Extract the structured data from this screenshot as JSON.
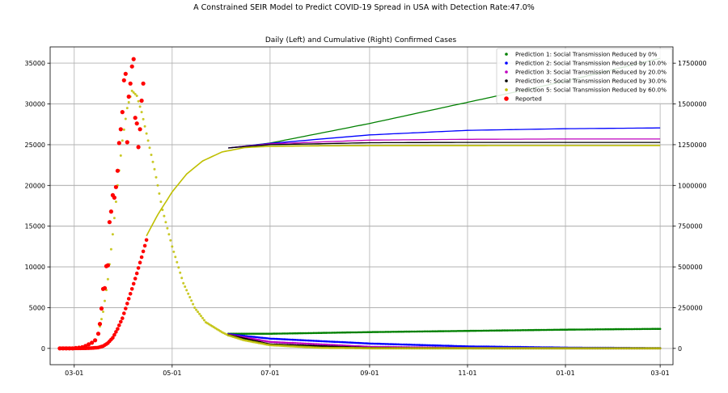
{
  "suptitle": "A Constrained SEIR Model to Predict COVID-19 Spread in USA with Detection Rate:47.0%",
  "chart_data": {
    "type": "scatter",
    "title": "Daily (Left) and Cumulative (Right) Confirmed Cases",
    "xlabel": "",
    "ylabel": "",
    "grid": true,
    "legend_placement": "top-right",
    "x_range": [
      "2020-02-15",
      "2021-03-09"
    ],
    "x_ticks": [
      {
        "date": "2020-03-01",
        "label": "03-01"
      },
      {
        "date": "2020-05-01",
        "label": "05-01"
      },
      {
        "date": "2020-07-01",
        "label": "07-01"
      },
      {
        "date": "2020-09-01",
        "label": "09-01"
      },
      {
        "date": "2020-11-01",
        "label": "11-01"
      },
      {
        "date": "2021-01-01",
        "label": "01-01"
      },
      {
        "date": "2021-03-01",
        "label": "03-01"
      }
    ],
    "y_left": {
      "range": [
        -2000,
        37000
      ],
      "ticks": [
        0,
        5000,
        10000,
        15000,
        20000,
        25000,
        30000,
        35000
      ]
    },
    "y_right": {
      "range": [
        -100000,
        1850000
      ],
      "ticks": [
        0,
        250000,
        500000,
        750000,
        1000000,
        1250000,
        1500000,
        1750000
      ]
    },
    "series": [
      {
        "name": "Prediction 1: Social Transmission Reduced by 0%",
        "color": "#008000",
        "marker": "dot",
        "daily_tail": [
          [
            "2020-06-05",
            1800
          ],
          [
            "2020-07-01",
            1800
          ],
          [
            "2020-09-01",
            2000
          ],
          [
            "2020-11-01",
            2150
          ],
          [
            "2021-01-01",
            2300
          ],
          [
            "2021-03-01",
            2400
          ]
        ],
        "cumulative_tail": [
          [
            "2020-06-05",
            1230000
          ],
          [
            "2020-07-01",
            1260000
          ],
          [
            "2020-09-01",
            1380000
          ],
          [
            "2020-11-01",
            1510000
          ],
          [
            "2021-01-01",
            1640000
          ],
          [
            "2021-03-01",
            1780000
          ]
        ]
      },
      {
        "name": "Prediction 2: Social Transmission Reduced by 10.0%",
        "color": "#0000ff",
        "marker": "dot",
        "daily_tail": [
          [
            "2020-06-05",
            1750
          ],
          [
            "2020-07-01",
            1200
          ],
          [
            "2020-09-01",
            600
          ],
          [
            "2020-11-01",
            250
          ],
          [
            "2021-01-01",
            100
          ],
          [
            "2021-03-01",
            40
          ]
        ],
        "cumulative_tail": [
          [
            "2020-06-05",
            1230000
          ],
          [
            "2020-07-01",
            1258000
          ],
          [
            "2020-09-01",
            1310000
          ],
          [
            "2020-11-01",
            1338000
          ],
          [
            "2021-01-01",
            1348000
          ],
          [
            "2021-03-01",
            1353000
          ]
        ]
      },
      {
        "name": "Prediction 3: Social Transmission Reduced by 20.0%",
        "color": "#bf00bf",
        "marker": "dot",
        "daily_tail": [
          [
            "2020-06-05",
            1700
          ],
          [
            "2020-07-01",
            800
          ],
          [
            "2020-09-01",
            200
          ],
          [
            "2020-11-01",
            50
          ],
          [
            "2021-01-01",
            10
          ],
          [
            "2021-03-01",
            0
          ]
        ],
        "cumulative_tail": [
          [
            "2020-06-05",
            1230000
          ],
          [
            "2020-07-01",
            1255000
          ],
          [
            "2020-09-01",
            1278000
          ],
          [
            "2020-11-01",
            1283000
          ],
          [
            "2021-01-01",
            1285000
          ],
          [
            "2021-03-01",
            1285000
          ]
        ]
      },
      {
        "name": "Prediction 4: Social Transmission Reduced by 30.0%",
        "color": "#000000",
        "marker": "dot",
        "daily_tail": [
          [
            "2020-06-05",
            1650
          ],
          [
            "2020-07-01",
            500
          ],
          [
            "2020-09-01",
            60
          ],
          [
            "2020-11-01",
            10
          ],
          [
            "2021-01-01",
            0
          ],
          [
            "2021-03-01",
            0
          ]
        ],
        "cumulative_tail": [
          [
            "2020-06-05",
            1230000
          ],
          [
            "2020-07-01",
            1250000
          ],
          [
            "2020-09-01",
            1262000
          ],
          [
            "2020-11-01",
            1264000
          ],
          [
            "2021-01-01",
            1264000
          ],
          [
            "2021-03-01",
            1264000
          ]
        ]
      },
      {
        "name": "Prediction 5: Social Transmission Reduced by 60.0%",
        "color": "#bfbf00",
        "marker": "dot",
        "daily_curve": [
          [
            "2020-03-16",
            1800
          ],
          [
            "2020-03-19",
            4500
          ],
          [
            "2020-03-22",
            8500
          ],
          [
            "2020-03-25",
            14000
          ],
          [
            "2020-03-28",
            20000
          ],
          [
            "2020-03-31",
            25500
          ],
          [
            "2020-04-03",
            29500
          ],
          [
            "2020-04-06",
            31600
          ],
          [
            "2020-04-09",
            31000
          ],
          [
            "2020-04-12",
            29000
          ],
          [
            "2020-04-16",
            25500
          ],
          [
            "2020-04-20",
            22000
          ],
          [
            "2020-04-25",
            17000
          ],
          [
            "2020-05-01",
            12500
          ],
          [
            "2020-05-08",
            8000
          ],
          [
            "2020-05-15",
            5000
          ],
          [
            "2020-05-22",
            3200
          ],
          [
            "2020-06-01",
            2000
          ],
          [
            "2020-06-05",
            1600
          ],
          [
            "2020-06-15",
            1000
          ],
          [
            "2020-07-01",
            400
          ],
          [
            "2020-08-01",
            80
          ],
          [
            "2020-09-01",
            20
          ],
          [
            "2020-10-01",
            0
          ],
          [
            "2021-03-01",
            0
          ]
        ],
        "cumulative_curve": [
          [
            "2020-04-15",
            690000
          ],
          [
            "2020-04-22",
            820000
          ],
          [
            "2020-05-01",
            960000
          ],
          [
            "2020-05-10",
            1070000
          ],
          [
            "2020-05-20",
            1150000
          ],
          [
            "2020-06-01",
            1205000
          ],
          [
            "2020-06-15",
            1232000
          ],
          [
            "2020-07-01",
            1240000
          ],
          [
            "2020-08-01",
            1243000
          ],
          [
            "2020-09-01",
            1244000
          ],
          [
            "2021-03-01",
            1245000
          ]
        ]
      },
      {
        "name": "Reported",
        "color": "#ff0000",
        "marker": "circle",
        "daily": [
          [
            "2020-02-21",
            0
          ],
          [
            "2020-02-23",
            0
          ],
          [
            "2020-02-25",
            0
          ],
          [
            "2020-02-27",
            0
          ],
          [
            "2020-02-29",
            0
          ],
          [
            "2020-03-02",
            50
          ],
          [
            "2020-03-04",
            80
          ],
          [
            "2020-03-06",
            150
          ],
          [
            "2020-03-08",
            300
          ],
          [
            "2020-03-10",
            500
          ],
          [
            "2020-03-12",
            700
          ],
          [
            "2020-03-14",
            1000
          ],
          [
            "2020-03-16",
            1800
          ],
          [
            "2020-03-17",
            3000
          ],
          [
            "2020-03-18",
            4900
          ],
          [
            "2020-03-19",
            7300
          ],
          [
            "2020-03-20",
            7400
          ],
          [
            "2020-03-21",
            10100
          ],
          [
            "2020-03-22",
            10200
          ],
          [
            "2020-03-23",
            15500
          ],
          [
            "2020-03-24",
            16800
          ],
          [
            "2020-03-25",
            18800
          ],
          [
            "2020-03-26",
            18500
          ],
          [
            "2020-03-27",
            19800
          ],
          [
            "2020-03-28",
            21800
          ],
          [
            "2020-03-29",
            25200
          ],
          [
            "2020-03-30",
            26900
          ],
          [
            "2020-03-31",
            29000
          ],
          [
            "2020-04-01",
            32900
          ],
          [
            "2020-04-02",
            33700
          ],
          [
            "2020-04-03",
            25300
          ],
          [
            "2020-04-04",
            30900
          ],
          [
            "2020-04-05",
            32500
          ],
          [
            "2020-04-06",
            34600
          ],
          [
            "2020-04-07",
            35500
          ],
          [
            "2020-04-08",
            28300
          ],
          [
            "2020-04-09",
            27600
          ],
          [
            "2020-04-10",
            24700
          ],
          [
            "2020-04-11",
            26900
          ],
          [
            "2020-04-12",
            30400
          ],
          [
            "2020-04-13",
            32500
          ]
        ],
        "cumulative": [
          [
            "2020-02-21",
            0
          ],
          [
            "2020-02-25",
            0
          ],
          [
            "2020-02-29",
            100
          ],
          [
            "2020-03-04",
            300
          ],
          [
            "2020-03-08",
            800
          ],
          [
            "2020-03-12",
            2000
          ],
          [
            "2020-03-16",
            5000
          ],
          [
            "2020-03-19",
            14000
          ],
          [
            "2020-03-22",
            33000
          ],
          [
            "2020-03-25",
            65000
          ],
          [
            "2020-03-28",
            120000
          ],
          [
            "2020-03-31",
            185000
          ],
          [
            "2020-04-03",
            275000
          ],
          [
            "2020-04-06",
            365000
          ],
          [
            "2020-04-09",
            460000
          ],
          [
            "2020-04-12",
            560000
          ],
          [
            "2020-04-15",
            665000
          ]
        ]
      }
    ]
  }
}
